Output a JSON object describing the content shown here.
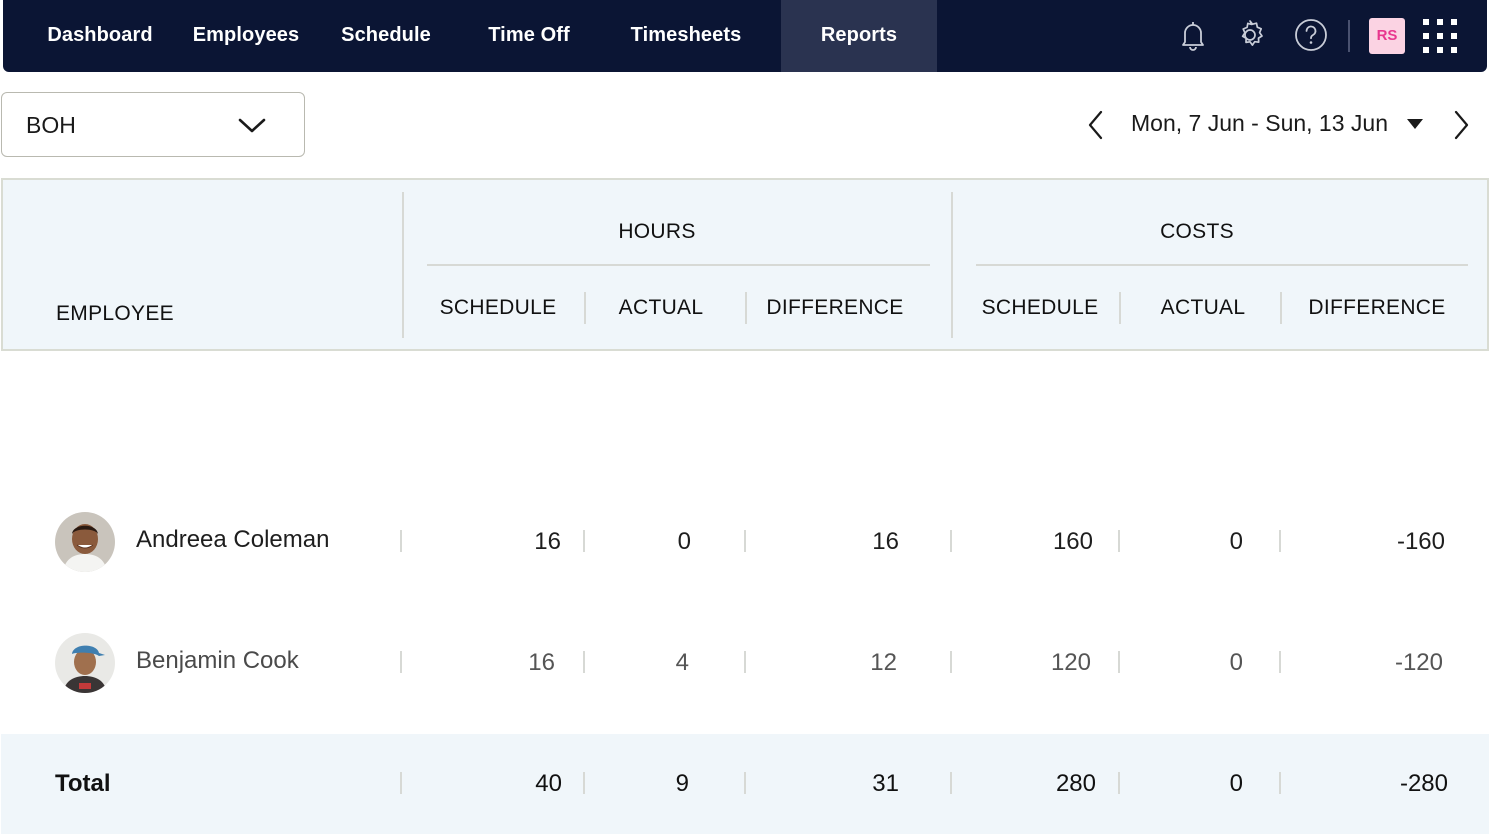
{
  "nav": {
    "items": [
      {
        "label": "Dashboard"
      },
      {
        "label": "Employees"
      },
      {
        "label": "Schedule"
      },
      {
        "label": "Time Off"
      },
      {
        "label": "Timesheets"
      },
      {
        "label": "Reports",
        "active": true
      }
    ],
    "icons": [
      "bell-icon",
      "gear-icon",
      "help-icon"
    ],
    "user_initials": "RS",
    "apps_icon": "grid-icon"
  },
  "toolbar": {
    "department": "BOH",
    "date_range": "Mon, 7 Jun - Sun, 13 Jun"
  },
  "table": {
    "group_headers": {
      "hours": "HOURS",
      "costs": "COSTS"
    },
    "columns": {
      "employee": "EMPLOYEE",
      "hours_schedule": "SCHEDULE",
      "hours_actual": "ACTUAL",
      "hours_difference": "DIFFERENCE",
      "costs_schedule": "SCHEDULE",
      "costs_actual": "ACTUAL",
      "costs_difference": "DIFFERENCE"
    },
    "rows": [
      {
        "name": "Andreea Coleman",
        "hours_schedule": "16",
        "hours_actual": "0",
        "hours_difference": "16",
        "costs_schedule": "160",
        "costs_actual": "0",
        "costs_difference": "-160"
      },
      {
        "name": "Benjamin Cook",
        "hours_schedule": "16",
        "hours_actual": "4",
        "hours_difference": "12",
        "costs_schedule": "120",
        "costs_actual": "0",
        "costs_difference": "-120"
      }
    ],
    "total": {
      "label": "Total",
      "hours_schedule": "40",
      "hours_actual": "9",
      "hours_difference": "31",
      "costs_schedule": "280",
      "costs_actual": "0",
      "costs_difference": "-280"
    }
  },
  "colors": {
    "nav_bg": "#0b1534",
    "nav_active_bg": "#2a3350",
    "header_bg": "#f0f6fa",
    "avatar_bg": "#fbd3e3",
    "avatar_text": "#e8368f"
  }
}
